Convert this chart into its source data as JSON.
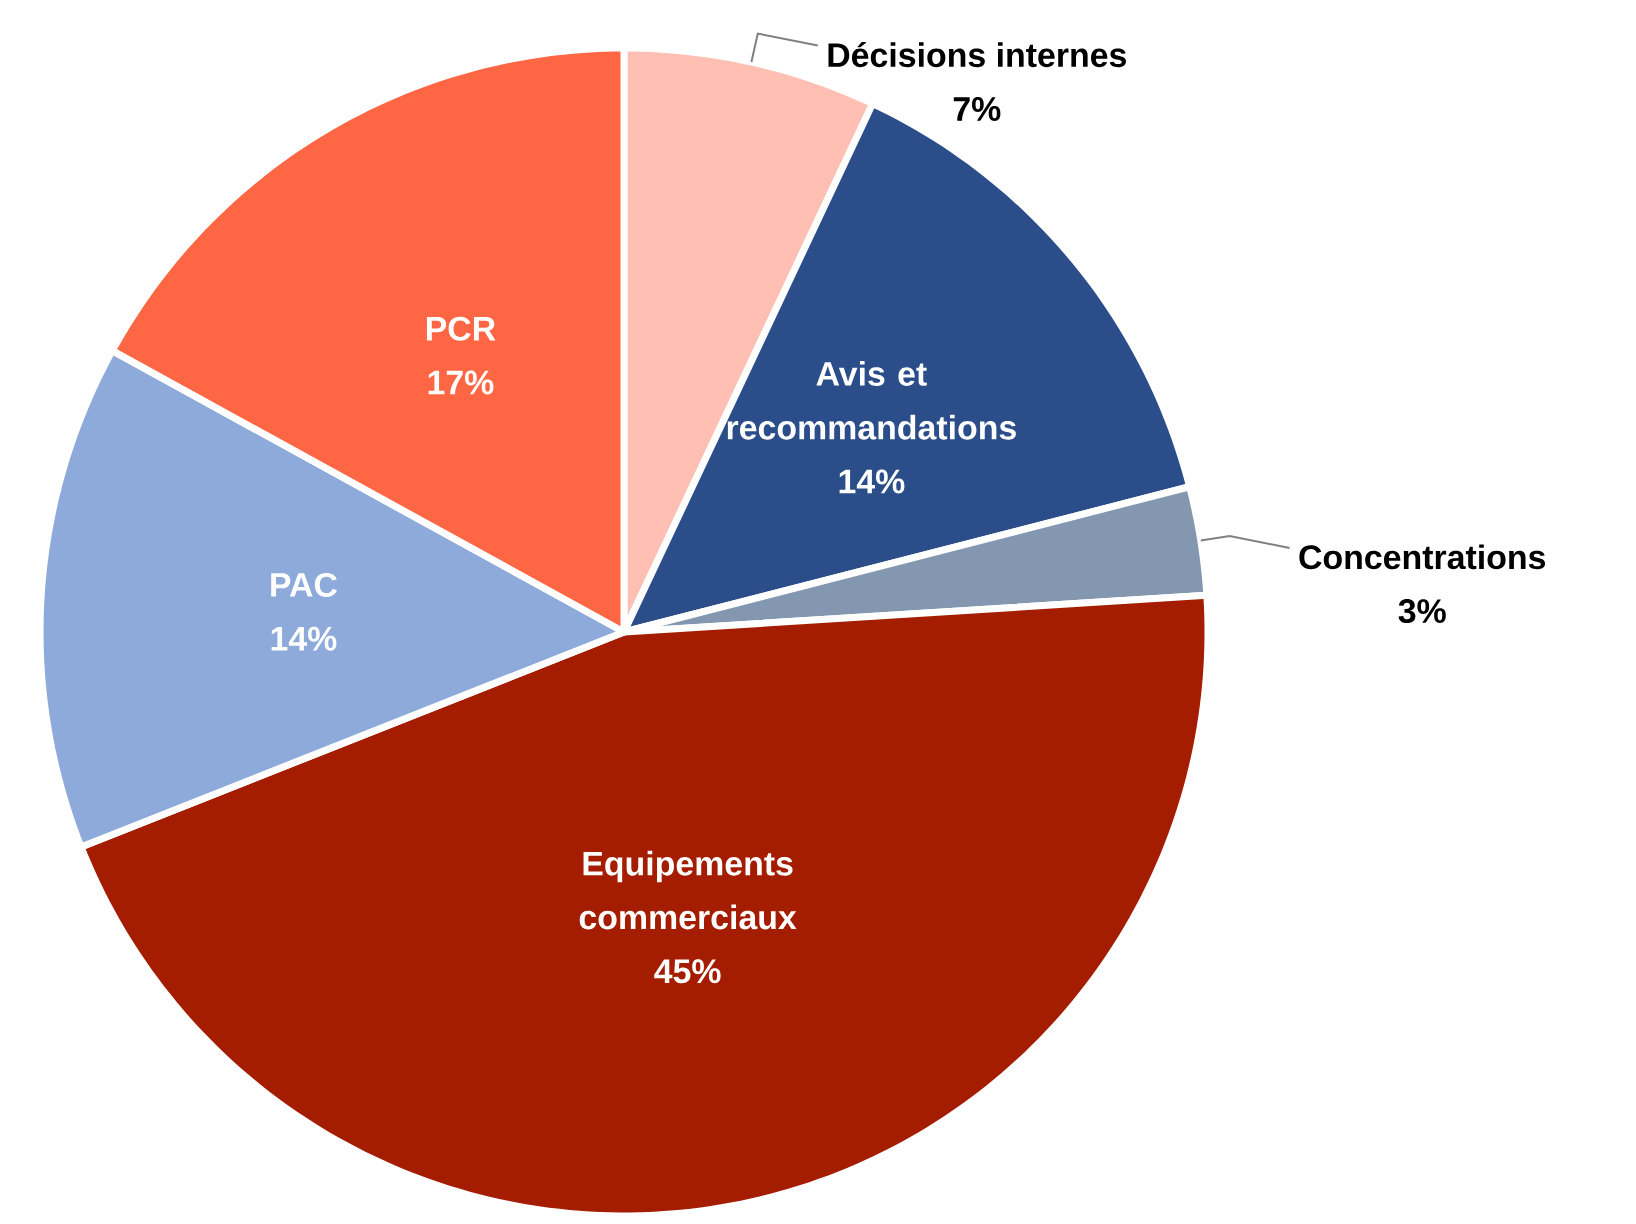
{
  "chart_data": {
    "type": "pie",
    "categories": [
      "Décisions internes",
      "Avis et recommandations",
      "Concentrations",
      "Equipements commerciaux",
      "PAC",
      "PCR"
    ],
    "values": [
      7,
      14,
      3,
      45,
      14,
      17
    ],
    "colors": [
      "#ffbfb3",
      "#2b4e8a",
      "#8497b0",
      "#a51d00",
      "#8eaadb",
      "#ff6644"
    ],
    "value_labels": [
      "7%",
      "14%",
      "3%",
      "45%",
      "14%",
      "17%"
    ]
  }
}
